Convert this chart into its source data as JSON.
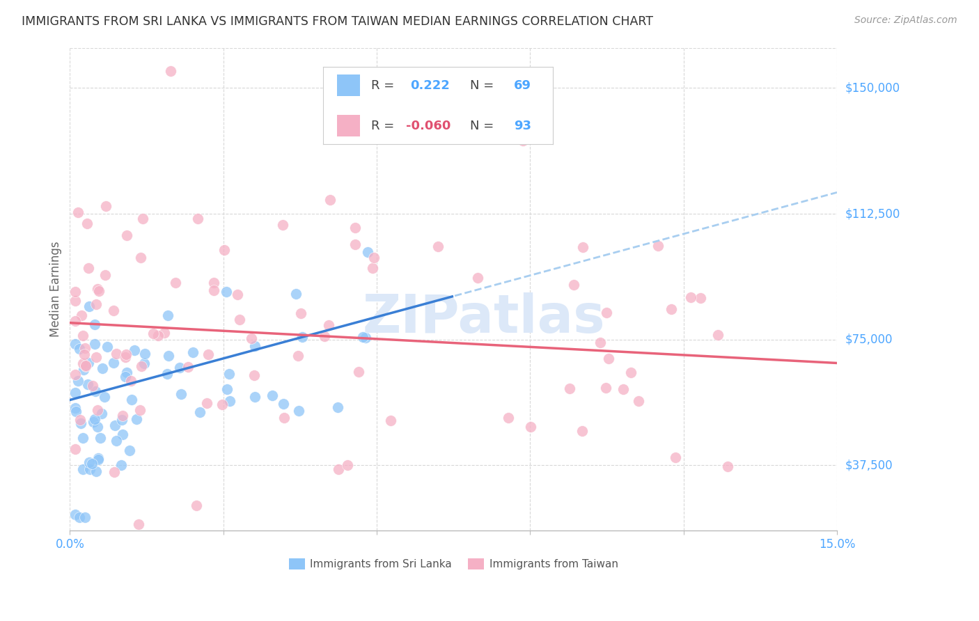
{
  "title": "IMMIGRANTS FROM SRI LANKA VS IMMIGRANTS FROM TAIWAN MEDIAN EARNINGS CORRELATION CHART",
  "source": "Source: ZipAtlas.com",
  "ylabel": "Median Earnings",
  "xlim": [
    0.0,
    0.15
  ],
  "ylim": [
    18000,
    162000
  ],
  "yticks": [
    37500,
    75000,
    112500,
    150000
  ],
  "ytick_labels": [
    "$37,500",
    "$75,000",
    "$112,500",
    "$150,000"
  ],
  "xticks": [
    0.0,
    0.03,
    0.06,
    0.09,
    0.12,
    0.15
  ],
  "xtick_labels": [
    "0.0%",
    "",
    "",
    "",
    "",
    "15.0%"
  ],
  "sri_lanka_color": "#8ec5f8",
  "taiwan_color": "#f5b0c5",
  "sri_lanka_line_color": "#3a7fd5",
  "sri_lanka_dashed_color": "#a8cef0",
  "taiwan_line_color": "#e8637a",
  "background_color": "#ffffff",
  "grid_color": "#d8d8d8",
  "R_sri_lanka": 0.222,
  "N_sri_lanka": 69,
  "R_taiwan": -0.06,
  "N_taiwan": 93,
  "legend_items": [
    "Immigrants from Sri Lanka",
    "Immigrants from Taiwan"
  ],
  "blue_text_color": "#4da6ff",
  "pink_text_color": "#e05070",
  "dark_text_color": "#444444",
  "source_color": "#999999",
  "title_color": "#333333",
  "ylabel_color": "#666666",
  "xtick_color": "#4da6ff",
  "watermark_color": "#dce8f8"
}
